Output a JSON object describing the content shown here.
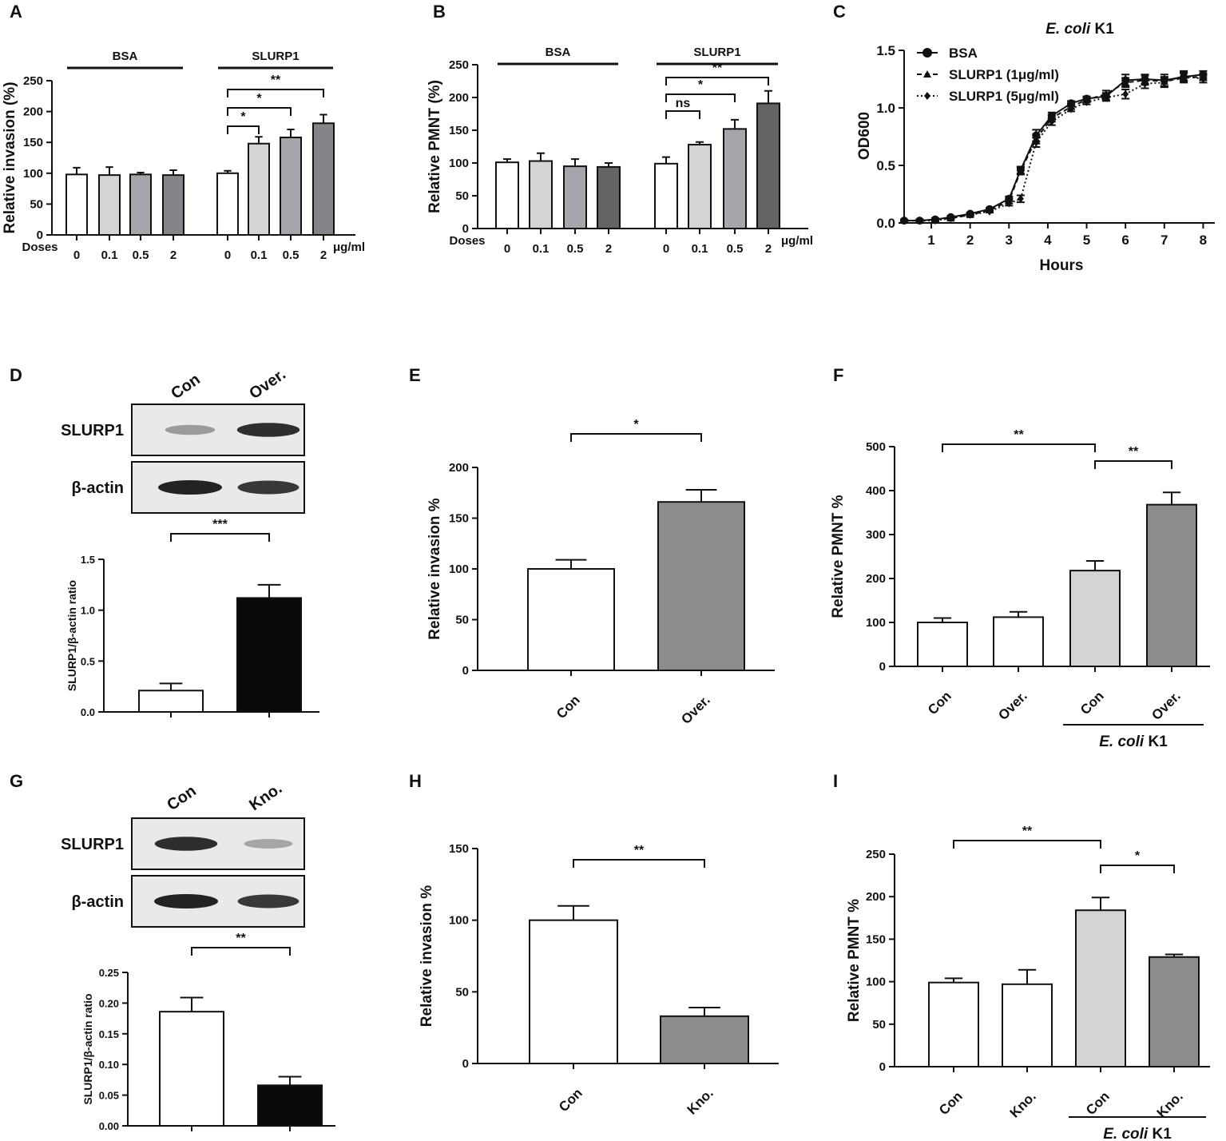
{
  "panel_labels": [
    "A",
    "B",
    "C",
    "D",
    "E",
    "F",
    "G",
    "H",
    "I"
  ],
  "colors": {
    "white": "#ffffff",
    "light": "#d4d4d4",
    "mid": "#a5a5ab",
    "dark": "#858589",
    "darker": "#646466",
    "black": "#0a0a0a",
    "gray": "#8c8c8c",
    "axis": "#111111"
  },
  "chart_data": [
    {
      "id": "A",
      "type": "bar",
      "ylabel": "Relative invasion (%)",
      "ylim": [
        0,
        250
      ],
      "yticks": [
        0,
        50,
        100,
        150,
        200,
        250
      ],
      "doses_label": "Doses",
      "unit_label": "μg/ml",
      "categories": [
        "0",
        "0.1",
        "0.5",
        "2",
        "0",
        "0.1",
        "0.5",
        "2"
      ],
      "values": [
        98,
        97,
        98,
        97,
        100,
        148,
        158,
        181
      ],
      "errors": [
        11,
        13,
        3,
        8,
        4,
        11,
        13,
        14
      ],
      "fills": [
        "white",
        "light",
        "mid",
        "dark",
        "white",
        "light",
        "mid",
        "dark"
      ],
      "groups": [
        {
          "label": "BSA",
          "from": 0,
          "to": 3
        },
        {
          "label": "SLURP1",
          "from": 4,
          "to": 7
        }
      ],
      "sig": [
        {
          "a": 4,
          "b": 5,
          "label": "*",
          "level": 1
        },
        {
          "a": 4,
          "b": 6,
          "label": "*",
          "level": 2
        },
        {
          "a": 4,
          "b": 7,
          "label": "**",
          "level": 3
        }
      ]
    },
    {
      "id": "B",
      "type": "bar",
      "ylabel": "Relative PMNT (%)",
      "ylim": [
        0,
        250
      ],
      "yticks": [
        0,
        50,
        100,
        150,
        200,
        250
      ],
      "doses_label": "Doses",
      "unit_label": "μg/ml",
      "categories": [
        "0",
        "0.1",
        "0.5",
        "2",
        "0",
        "0.1",
        "0.5",
        "2"
      ],
      "values": [
        101,
        103,
        95,
        94,
        99,
        128,
        152,
        191
      ],
      "errors": [
        5,
        12,
        11,
        6,
        10,
        4,
        14,
        19
      ],
      "fills": [
        "white",
        "light",
        "mid",
        "darker",
        "white",
        "light",
        "mid",
        "darker"
      ],
      "groups": [
        {
          "label": "BSA",
          "from": 0,
          "to": 3
        },
        {
          "label": "SLURP1",
          "from": 4,
          "to": 7
        }
      ],
      "sig": [
        {
          "a": 4,
          "b": 5,
          "label": "ns",
          "level": 1
        },
        {
          "a": 4,
          "b": 6,
          "label": "*",
          "level": 2
        },
        {
          "a": 4,
          "b": 7,
          "label": "**",
          "level": 3
        }
      ]
    },
    {
      "id": "C",
      "type": "line",
      "title": "E. coli K1",
      "title_plain": "K1",
      "title_italic": "E. coli",
      "xlabel": "Hours",
      "ylabel": "OD600",
      "xlim": [
        0.3,
        8.3
      ],
      "ylim": [
        0,
        1.5
      ],
      "xticks": [
        1,
        2,
        3,
        4,
        5,
        6,
        7,
        8
      ],
      "yticks": [
        0.0,
        0.5,
        1.0,
        1.5
      ],
      "series": [
        {
          "name": "BSA",
          "marker": "circle",
          "dash": "solid",
          "x": [
            0.3,
            0.7,
            1.1,
            1.5,
            2.0,
            2.5,
            3.0,
            3.3,
            3.7,
            4.1,
            4.6,
            5.0,
            5.5,
            6.0,
            6.5,
            7.0,
            7.5,
            8.0
          ],
          "y": [
            0.02,
            0.02,
            0.03,
            0.05,
            0.08,
            0.12,
            0.21,
            0.46,
            0.76,
            0.93,
            1.04,
            1.08,
            1.1,
            1.24,
            1.25,
            1.24,
            1.27,
            1.29
          ],
          "err": [
            0.01,
            0.01,
            0.01,
            0.01,
            0.01,
            0.01,
            0.02,
            0.03,
            0.05,
            0.03,
            0.02,
            0.02,
            0.03,
            0.05,
            0.04,
            0.05,
            0.04,
            0.03
          ]
        },
        {
          "name": "SLURP1 (1μg/ml)",
          "marker": "triangle",
          "dash": "6,4",
          "x": [
            0.3,
            0.7,
            1.1,
            1.5,
            2.0,
            2.5,
            3.0,
            3.3,
            3.7,
            4.1,
            4.6,
            5.0,
            5.5,
            6.0,
            6.5,
            7.0,
            7.5,
            8.0
          ],
          "y": [
            0.02,
            0.02,
            0.03,
            0.04,
            0.07,
            0.11,
            0.19,
            0.45,
            0.73,
            0.91,
            1.01,
            1.07,
            1.12,
            1.22,
            1.24,
            1.23,
            1.26,
            1.27
          ],
          "err": [
            0.01,
            0.01,
            0.01,
            0.01,
            0.01,
            0.01,
            0.02,
            0.03,
            0.04,
            0.03,
            0.02,
            0.02,
            0.03,
            0.04,
            0.04,
            0.04,
            0.04,
            0.03
          ]
        },
        {
          "name": "SLURP1 (5μg/ml)",
          "marker": "diamond",
          "dash": "2,3",
          "x": [
            0.3,
            0.7,
            1.1,
            1.5,
            2.0,
            2.5,
            3.0,
            3.3,
            3.7,
            4.1,
            4.6,
            5.0,
            5.5,
            6.0,
            6.5,
            7.0,
            7.5,
            8.0
          ],
          "y": [
            0.02,
            0.02,
            0.02,
            0.04,
            0.07,
            0.1,
            0.17,
            0.21,
            0.7,
            0.88,
            0.99,
            1.05,
            1.09,
            1.12,
            1.21,
            1.22,
            1.28,
            1.25
          ],
          "err": [
            0.01,
            0.01,
            0.01,
            0.01,
            0.01,
            0.01,
            0.02,
            0.03,
            0.04,
            0.03,
            0.02,
            0.02,
            0.03,
            0.04,
            0.04,
            0.04,
            0.04,
            0.03
          ]
        }
      ]
    },
    {
      "id": "D",
      "type": "bar",
      "ylabel": "SLURP1/β-actin ratio",
      "ylim": [
        0,
        1.5
      ],
      "yticks": [
        0.0,
        0.5,
        1.0,
        1.5
      ],
      "categories": [
        "Con",
        "Over."
      ],
      "values": [
        0.21,
        1.12
      ],
      "errors": [
        0.07,
        0.13
      ],
      "fills": [
        "white",
        "black"
      ],
      "sig": [
        {
          "a": 0,
          "b": 1,
          "label": "***",
          "level": 1
        }
      ],
      "blot": {
        "lanes": [
          "Con",
          "Over."
        ],
        "rows": [
          "SLURP1",
          "β-actin"
        ],
        "intensity": [
          [
            0.45,
            0.95
          ],
          [
            1.0,
            0.9
          ]
        ]
      }
    },
    {
      "id": "E",
      "type": "bar",
      "ylabel": "Relative invasion %",
      "ylim": [
        0,
        200
      ],
      "yticks": [
        0,
        50,
        100,
        150,
        200
      ],
      "categories": [
        "Con",
        "Over."
      ],
      "values": [
        100,
        166
      ],
      "errors": [
        9,
        12
      ],
      "fills": [
        "white",
        "gray"
      ],
      "sig": [
        {
          "a": 0,
          "b": 1,
          "label": "*",
          "level": 1
        }
      ]
    },
    {
      "id": "F",
      "type": "bar",
      "ylabel": "Relative PMNT %",
      "ylim": [
        0,
        500
      ],
      "yticks": [
        0,
        100,
        200,
        300,
        400,
        500
      ],
      "categories": [
        "Con",
        "Over.",
        "Con",
        "Over."
      ],
      "values": [
        100,
        112,
        218,
        368
      ],
      "errors": [
        10,
        12,
        22,
        28
      ],
      "fills": [
        "white",
        "white",
        "light",
        "gray"
      ],
      "group_under": {
        "label_italic": "E. coli",
        "label_plain": "K1",
        "from": 2,
        "to": 3
      },
      "sig": [
        {
          "a": 0,
          "b": 2,
          "label": "**",
          "level": 2
        },
        {
          "a": 2,
          "b": 3,
          "label": "**",
          "level": 1
        }
      ]
    },
    {
      "id": "G",
      "type": "bar",
      "ylabel": "SLURP1/β-actin ratio",
      "ylim": [
        0,
        0.25
      ],
      "yticks": [
        0.0,
        0.05,
        0.1,
        0.15,
        0.2,
        0.25
      ],
      "categories": [
        "Con",
        "Kno."
      ],
      "values": [
        0.186,
        0.066
      ],
      "errors": [
        0.023,
        0.014
      ],
      "fills": [
        "white",
        "black"
      ],
      "sig": [
        {
          "a": 0,
          "b": 1,
          "label": "**",
          "level": 1
        }
      ],
      "blot": {
        "lanes": [
          "Con",
          "Kno."
        ],
        "rows": [
          "SLURP1",
          "β-actin"
        ],
        "intensity": [
          [
            0.95,
            0.4
          ],
          [
            1.0,
            0.9
          ]
        ]
      }
    },
    {
      "id": "H",
      "type": "bar",
      "ylabel": "Relative invasion %",
      "ylim": [
        0,
        150
      ],
      "yticks": [
        0,
        50,
        100,
        150
      ],
      "categories": [
        "Con",
        "Kno."
      ],
      "values": [
        100,
        33
      ],
      "errors": [
        10,
        6
      ],
      "fills": [
        "white",
        "gray"
      ],
      "sig": [
        {
          "a": 0,
          "b": 1,
          "label": "**",
          "level": 1
        }
      ]
    },
    {
      "id": "I",
      "type": "bar",
      "ylabel": "Relative PMNT %",
      "ylim": [
        0,
        250
      ],
      "yticks": [
        0,
        50,
        100,
        150,
        200,
        250
      ],
      "categories": [
        "Con",
        "Kno.",
        "Con",
        "Kno."
      ],
      "values": [
        99,
        97,
        184,
        129
      ],
      "errors": [
        5,
        17,
        15,
        3
      ],
      "fills": [
        "white",
        "white",
        "light",
        "gray"
      ],
      "group_under": {
        "label_italic": "E. coli",
        "label_plain": "K1",
        "from": 2,
        "to": 3
      },
      "sig": [
        {
          "a": 0,
          "b": 2,
          "label": "**",
          "level": 2
        },
        {
          "a": 2,
          "b": 3,
          "label": "*",
          "level": 1
        }
      ]
    }
  ]
}
